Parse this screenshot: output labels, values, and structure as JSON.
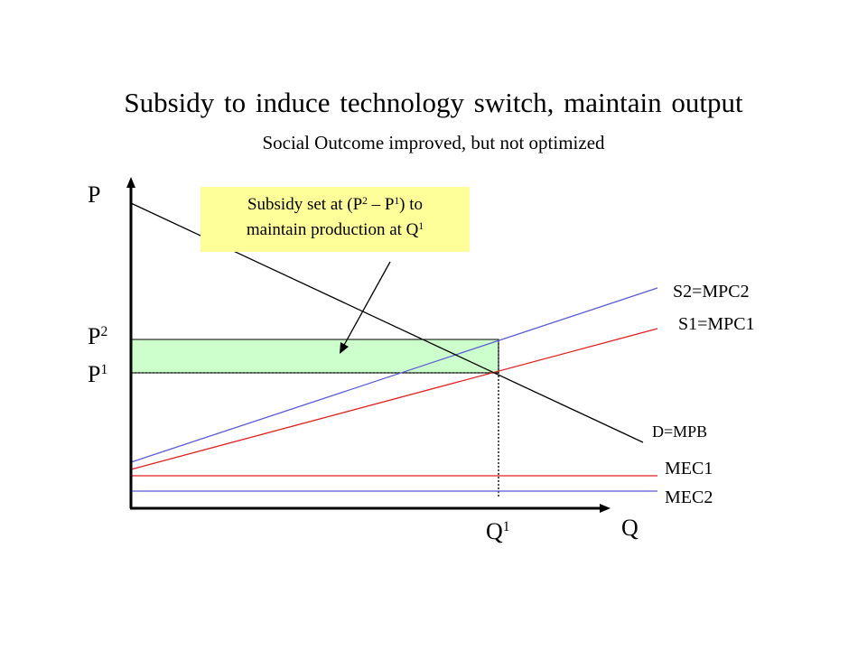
{
  "title": "Subsidy to induce technology switch, maintain output",
  "subtitle": "Social Outcome improved, but not optimized",
  "axes": {
    "y_label": "P",
    "x_label": "Q"
  },
  "price_labels": {
    "p2_base": "P",
    "p2_sup": "2",
    "p1_base": "P",
    "p1_sup": "1"
  },
  "quantity_label": {
    "base": "Q",
    "sup": "1"
  },
  "curves": {
    "s2": "S2=MPC2",
    "s1": "S1=MPC1",
    "demand": "D=MPB",
    "mec1": "MEC1",
    "mec2": "MEC2"
  },
  "callout": {
    "line1_a": "Subsidy set at (P",
    "line1_sup1": "2",
    "line1_b": " – P",
    "line1_sup2": "1",
    "line1_c": ") to",
    "line2_a": "maintain production at Q",
    "line2_sup": "1"
  },
  "colors": {
    "supply2": "#5a5ad6",
    "supply1": "#e02020",
    "demand": "#000000",
    "subsidy_fill": "#ccffcc",
    "callout_fill": "#ffff99"
  }
}
